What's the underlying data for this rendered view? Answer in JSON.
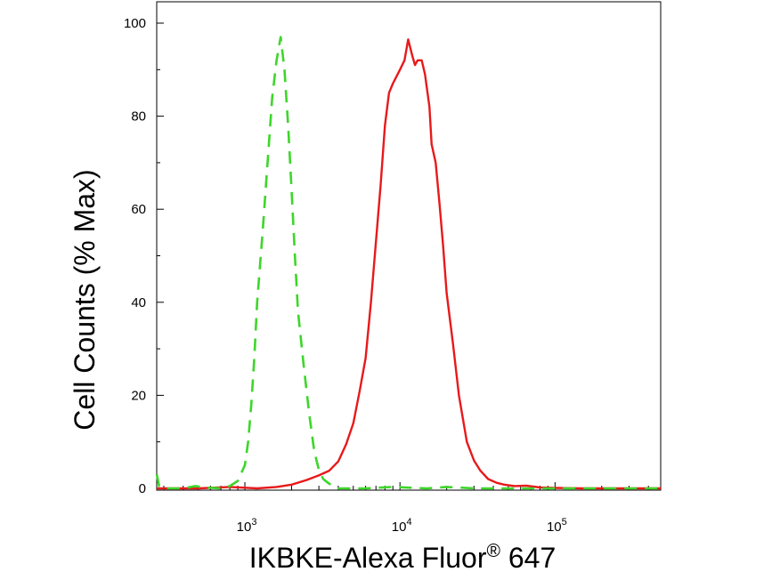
{
  "chart_data": {
    "type": "line",
    "title": "",
    "xlabel": "IKBKE-Alexa Fluor",
    "xlabel_superscript": "®",
    "xlabel_suffix": " 647",
    "ylabel": "Cell Counts (% Max)",
    "x_scale": "log",
    "xlim": [
      270,
      480000
    ],
    "ylim": [
      0,
      100
    ],
    "y_ticks": [
      0,
      20,
      40,
      60,
      80,
      100
    ],
    "y_tick_labels": [
      "0",
      "20",
      "40",
      "60",
      "80",
      "100"
    ],
    "x_major_ticks": [
      1000,
      10000,
      100000
    ],
    "x_tick_labels": [
      {
        "base": "10",
        "exp": "3"
      },
      {
        "base": "10",
        "exp": "4"
      },
      {
        "base": "10",
        "exp": "5"
      }
    ],
    "grid": false,
    "legend": "none",
    "series": [
      {
        "color": "#e8191b",
        "style": "solid",
        "points": [
          [
            270,
            0
          ],
          [
            500,
            0
          ],
          [
            800,
            0.3
          ],
          [
            1200,
            0
          ],
          [
            1600,
            0.3
          ],
          [
            2000,
            0.8
          ],
          [
            2500,
            1.8
          ],
          [
            3000,
            2.8
          ],
          [
            3500,
            3.8
          ],
          [
            4000,
            5.8
          ],
          [
            4500,
            9.5
          ],
          [
            5000,
            14
          ],
          [
            5500,
            21
          ],
          [
            6000,
            28
          ],
          [
            6500,
            40
          ],
          [
            7000,
            53
          ],
          [
            7500,
            65
          ],
          [
            8000,
            78
          ],
          [
            8500,
            85
          ],
          [
            9000,
            87
          ],
          [
            10000,
            90
          ],
          [
            10700,
            92
          ],
          [
            11300,
            96.5
          ],
          [
            12000,
            93
          ],
          [
            12500,
            91
          ],
          [
            13000,
            92
          ],
          [
            13800,
            92
          ],
          [
            14500,
            89
          ],
          [
            15500,
            82
          ],
          [
            16000,
            74
          ],
          [
            17000,
            70
          ],
          [
            18000,
            61
          ],
          [
            19000,
            52
          ],
          [
            20000,
            42
          ],
          [
            22000,
            31
          ],
          [
            24000,
            20
          ],
          [
            27000,
            10
          ],
          [
            30000,
            6
          ],
          [
            33000,
            3.8
          ],
          [
            37000,
            2
          ],
          [
            42000,
            1.2
          ],
          [
            47000,
            0.8
          ],
          [
            55000,
            0.5
          ],
          [
            65000,
            0.6
          ],
          [
            80000,
            0.2
          ],
          [
            100000,
            0.1
          ],
          [
            150000,
            0
          ],
          [
            480000,
            0
          ]
        ]
      },
      {
        "color": "#3dd62a",
        "style": "dashed",
        "points": [
          [
            270,
            3
          ],
          [
            280,
            0.5
          ],
          [
            300,
            0
          ],
          [
            400,
            0
          ],
          [
            480,
            0.5
          ],
          [
            550,
            0.2
          ],
          [
            700,
            0
          ],
          [
            800,
            0.5
          ],
          [
            900,
            1.6
          ],
          [
            1000,
            5
          ],
          [
            1050,
            10
          ],
          [
            1100,
            18
          ],
          [
            1150,
            28
          ],
          [
            1200,
            40
          ],
          [
            1300,
            55
          ],
          [
            1400,
            70
          ],
          [
            1500,
            84
          ],
          [
            1600,
            92
          ],
          [
            1700,
            97
          ],
          [
            1800,
            90
          ],
          [
            1900,
            78
          ],
          [
            2000,
            64
          ],
          [
            2100,
            50
          ],
          [
            2200,
            38
          ],
          [
            2400,
            26
          ],
          [
            2600,
            16
          ],
          [
            2800,
            8
          ],
          [
            3000,
            4
          ],
          [
            3200,
            2
          ],
          [
            3500,
            1
          ],
          [
            4000,
            0
          ],
          [
            6000,
            0
          ],
          [
            9000,
            0.3
          ],
          [
            15000,
            0
          ],
          [
            20000,
            0.3
          ],
          [
            30000,
            0
          ],
          [
            480000,
            0
          ]
        ]
      }
    ]
  }
}
